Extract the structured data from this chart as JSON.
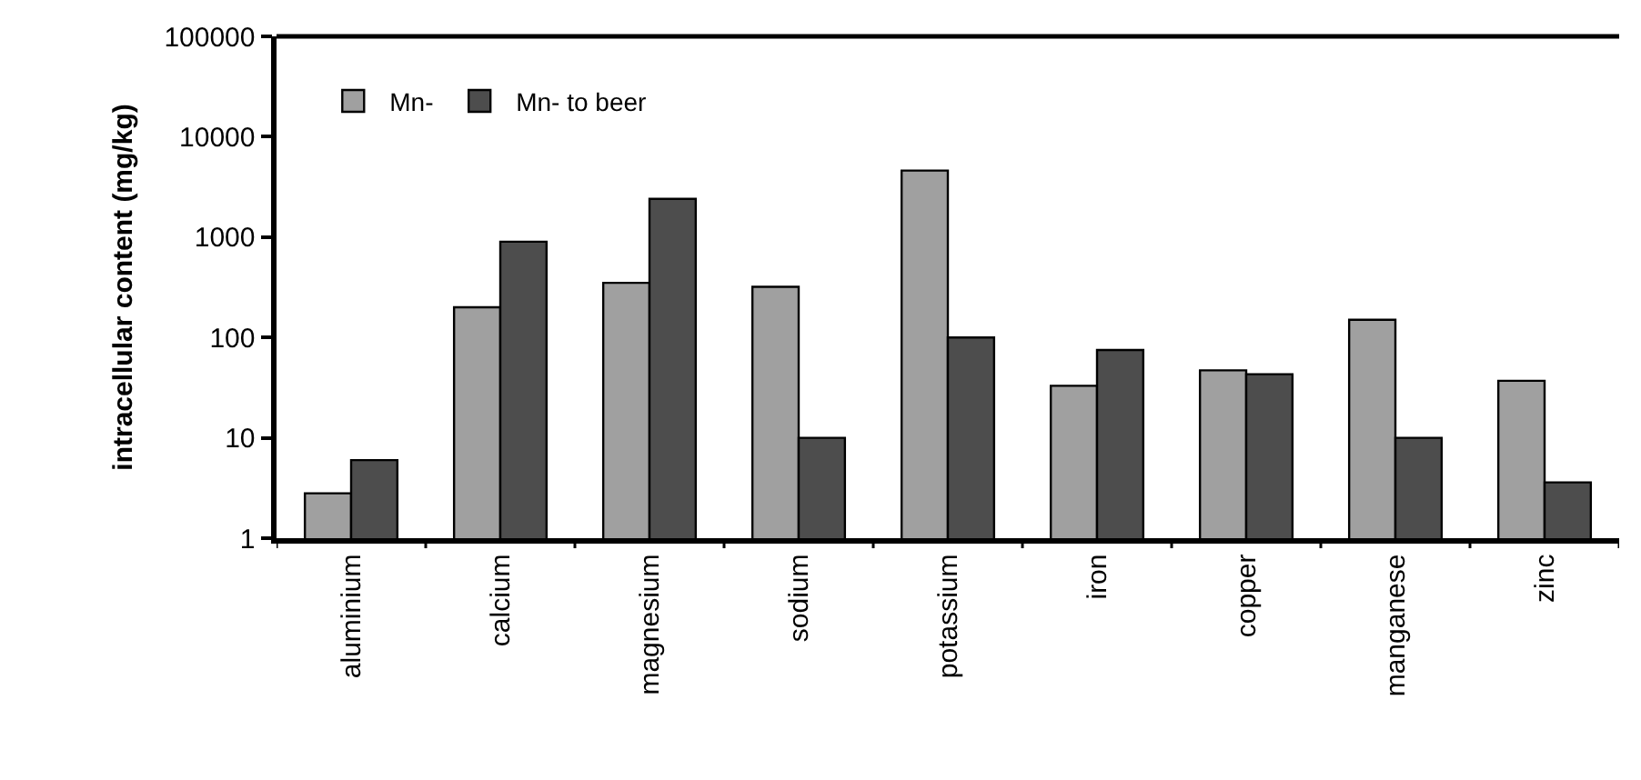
{
  "chart_data": {
    "type": "bar",
    "ylabel": "intracellular content (mg/kg)",
    "categories": [
      "aluminium",
      "calcium",
      "magnesium",
      "sodium",
      "potassium",
      "iron",
      "copper",
      "manganese",
      "zinc"
    ],
    "series": [
      {
        "name": "Mn-",
        "color": "#a0a0a0",
        "values": [
          2.8,
          200,
          350,
          320,
          4600,
          33,
          47,
          150,
          37
        ]
      },
      {
        "name": "Mn- to beer",
        "color": "#4d4d4d",
        "values": [
          6,
          900,
          2400,
          10,
          100,
          75,
          43,
          10,
          3.6
        ]
      }
    ],
    "log": true,
    "ylim": [
      1,
      100000
    ],
    "yticks": [
      1,
      10,
      100,
      1000,
      10000,
      100000
    ],
    "legend": "top left",
    "grid": false
  }
}
